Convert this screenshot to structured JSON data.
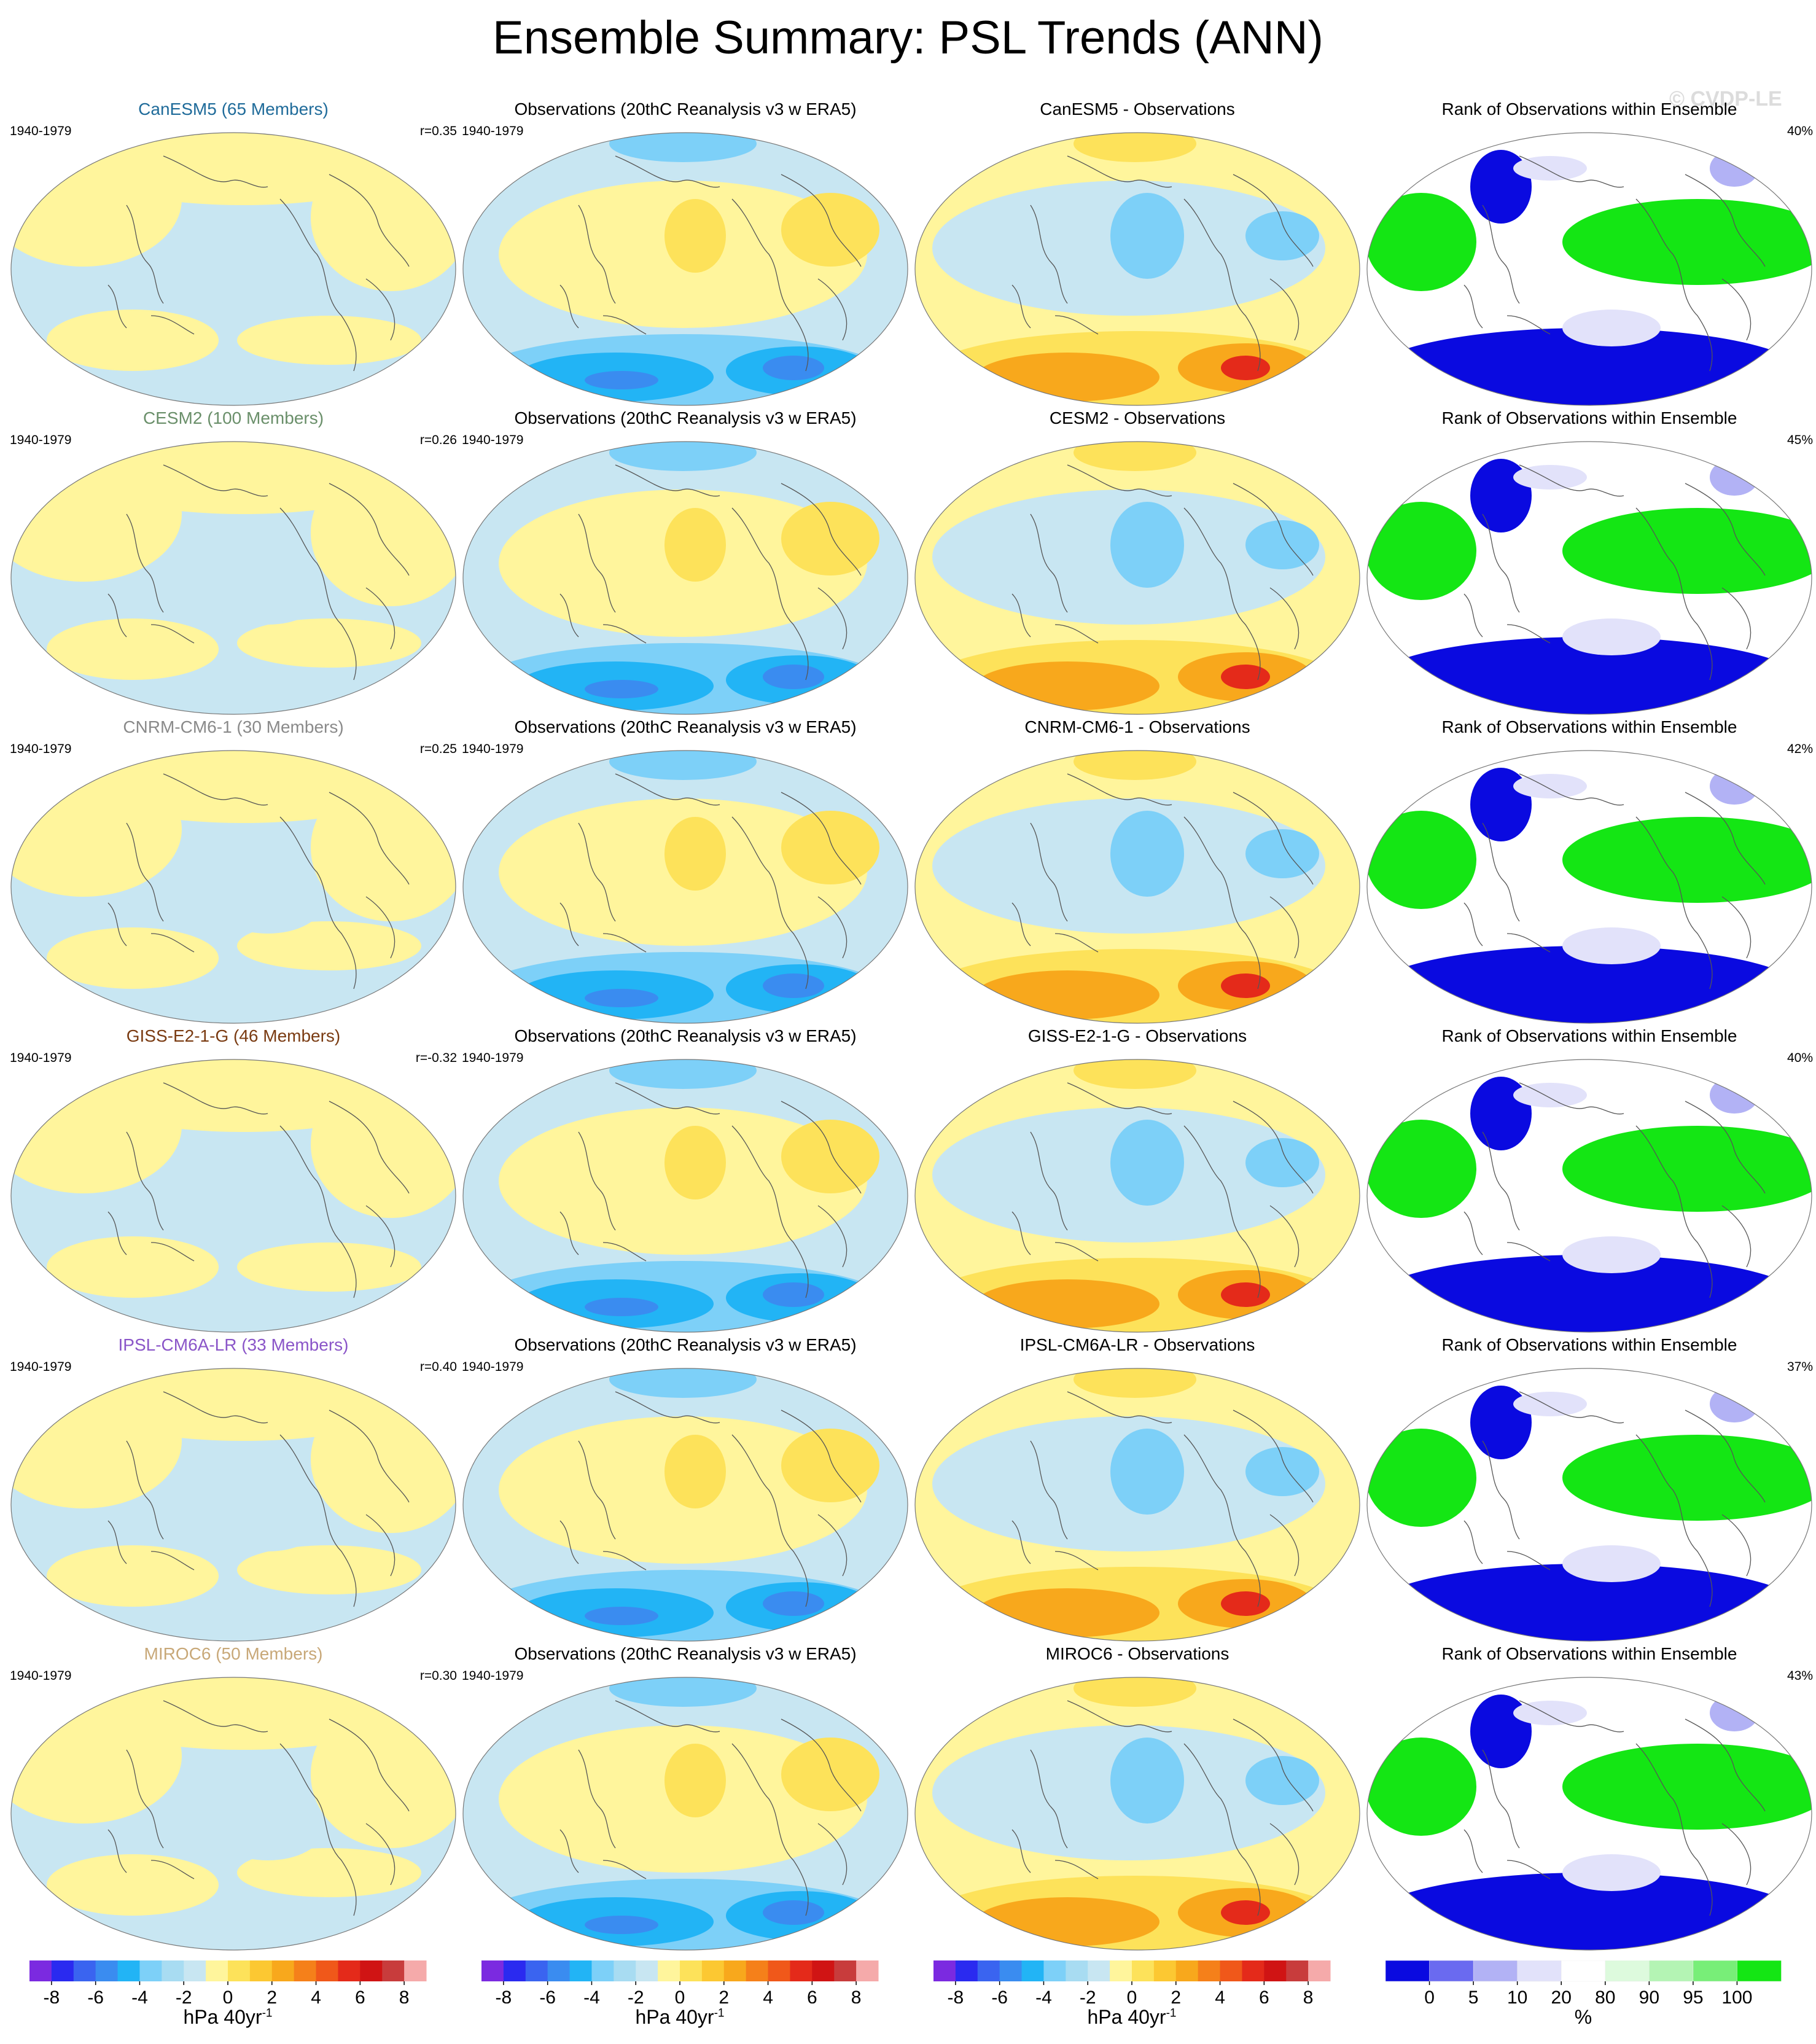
{
  "title": "Ensemble Summary: PSL Trends (ANN)",
  "watermark": "© CVDP-LE",
  "rows": [
    {
      "model_title": "CanESM5 (65 Members)",
      "model_color": "#1f6b9a",
      "period": "1940-1979",
      "r": "r=0.35",
      "obs_title": "Observations (20thC Reanalysis v3 w ERA5)",
      "obs_period": "1940-1979",
      "diff_title": "CanESM5 - Observations",
      "rank_title": "Rank of Observations within Ensemble",
      "rank_pct": "40%"
    },
    {
      "model_title": "CESM2 (100 Members)",
      "model_color": "#6a8f6a",
      "period": "1940-1979",
      "r": "r=0.26",
      "obs_title": "Observations (20thC Reanalysis v3 w ERA5)",
      "obs_period": "1940-1979",
      "diff_title": "CESM2 - Observations",
      "rank_title": "Rank of Observations within Ensemble",
      "rank_pct": "45%"
    },
    {
      "model_title": "CNRM-CM6-1 (30 Members)",
      "model_color": "#8a8a8a",
      "period": "1940-1979",
      "r": "r=0.25",
      "obs_title": "Observations (20thC Reanalysis v3 w ERA5)",
      "obs_period": "1940-1979",
      "diff_title": "CNRM-CM6-1 - Observations",
      "rank_title": "Rank of Observations within Ensemble",
      "rank_pct": "42%"
    },
    {
      "model_title": "GISS-E2-1-G (46 Members)",
      "model_color": "#7a3b12",
      "period": "1940-1979",
      "r": "r=-0.32",
      "obs_title": "Observations (20thC Reanalysis v3 w ERA5)",
      "obs_period": "1940-1979",
      "diff_title": "GISS-E2-1-G - Observations",
      "rank_title": "Rank of Observations within Ensemble",
      "rank_pct": "40%"
    },
    {
      "model_title": "IPSL-CM6A-LR (33 Members)",
      "model_color": "#8a55c8",
      "period": "1940-1979",
      "r": "r=0.40",
      "obs_title": "Observations (20thC Reanalysis v3 w ERA5)",
      "obs_period": "1940-1979",
      "diff_title": "IPSL-CM6A-LR - Observations",
      "rank_title": "Rank of Observations within Ensemble",
      "rank_pct": "37%"
    },
    {
      "model_title": "MIROC6 (50 Members)",
      "model_color": "#c8a878",
      "period": "1940-1979",
      "r": "r=0.30",
      "obs_title": "Observations (20thC Reanalysis v3 w ERA5)",
      "obs_period": "1940-1979",
      "diff_title": "MIROC6 - Observations",
      "rank_title": "Rank of Observations within Ensemble",
      "rank_pct": "43%"
    }
  ],
  "chart_data": {
    "type": "heatmap",
    "title": "Ensemble Summary: PSL Trends (ANN)",
    "colorbars": [
      {
        "name": "trend",
        "label": "hPa 40yr",
        "label_sup": "-1",
        "ticks": [
          "-8",
          "-6",
          "-4",
          "-2",
          "0",
          "2",
          "4",
          "6",
          "8"
        ],
        "colors": [
          "#7b2ae0",
          "#2a2af0",
          "#3a64f0",
          "#3a8cf0",
          "#22b4f5",
          "#7dd0f8",
          "#a8dcf2",
          "#c8e6f2",
          "#fff59c",
          "#fde25a",
          "#fcc832",
          "#f8a81c",
          "#f5801a",
          "#f0581a",
          "#e42a1a",
          "#d01414",
          "#c83c3c",
          "#f5aaaa"
        ]
      },
      {
        "name": "rank",
        "label": "%",
        "ticks": [
          "0",
          "5",
          "10",
          "20",
          "80",
          "90",
          "95",
          "100"
        ],
        "colors": [
          "#0a0ae0",
          "#6a6af0",
          "#b2b2f5",
          "#e2e2fa",
          "#ffffff",
          "#ddfadd",
          "#b4f4b4",
          "#78ee78",
          "#14e614"
        ]
      }
    ]
  }
}
